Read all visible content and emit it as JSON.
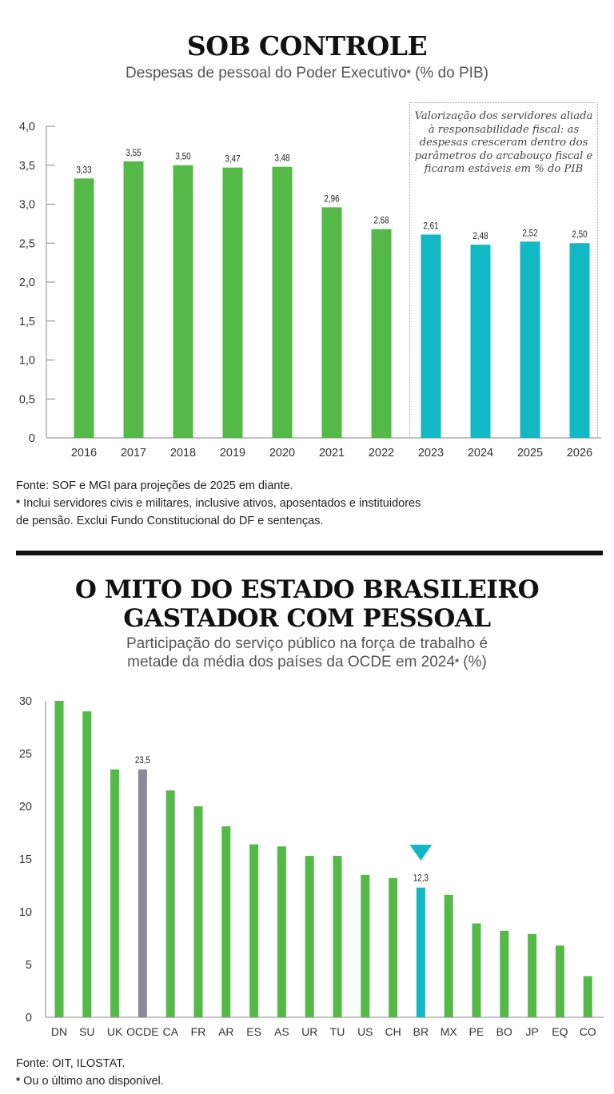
{
  "chart1": {
    "title": "SOB CONTROLE",
    "subtitle": "Despesas de pessoal do Poder Executivo",
    "subtitle_mark": "*",
    "subtitle_unit": " (% do PIB)",
    "callout": "Valorização dos servidores aliada à responsabilidade fiscal: as despesas cresceram dentro dos parâmetros do arcabouço fiscal e ficaram estáveis em % do PIB",
    "source": "Fonte: SOF e MGI para projeções de 2025 em diante.",
    "footnote_mark": "*",
    "footnote_line1": " Inclui servidores civis e militares, inclusive ativos, aposentados e instituidores",
    "footnote_line2": "de pensão. Exclui Fundo Constitucional do DF e sentenças."
  },
  "chart2": {
    "title_line1": "O MITO DO ESTADO BRASILEIRO",
    "title_line2": "GASTADOR COM PESSOAL",
    "subtitle_line1": "Participação do serviço público na força de trabalho é",
    "subtitle_line2": "metade da média dos países da OCDE em 2024",
    "subtitle_mark": "*",
    "subtitle_unit": " (%)",
    "source": "Fonte: OIT, ILOSTAT.",
    "footnote_mark": "*",
    "footnote": " Ou o último ano disponível."
  },
  "colors": {
    "green": "#54b947",
    "teal": "#12b8c4",
    "gray": "#8d8a98"
  },
  "chart_data": [
    {
      "type": "bar",
      "title": "SOB CONTROLE",
      "ylabel": "% do PIB",
      "ylim": [
        0,
        4.0
      ],
      "yticks": [
        "0",
        "0,5",
        "1,0",
        "1,5",
        "2,0",
        "2,5",
        "3,0",
        "3,5",
        "4,0"
      ],
      "categories": [
        "2016",
        "2017",
        "2018",
        "2019",
        "2020",
        "2021",
        "2022",
        "2023",
        "2024",
        "2025",
        "2026"
      ],
      "values": [
        3.33,
        3.55,
        3.5,
        3.47,
        3.48,
        2.96,
        2.68,
        2.61,
        2.48,
        2.52,
        2.5
      ],
      "labels": [
        "3,33",
        "3,55",
        "3,50",
        "3,47",
        "3,48",
        "2,96",
        "2,68",
        "2,61",
        "2,48",
        "2,52",
        "2,50"
      ],
      "highlight_from": "2023"
    },
    {
      "type": "bar",
      "title": "O MITO DO ESTADO BRASILEIRO GASTADOR COM PESSOAL",
      "ylabel": "%",
      "ylim": [
        0,
        30
      ],
      "yticks": [
        "0",
        "5",
        "10",
        "15",
        "20",
        "25",
        "30"
      ],
      "categories": [
        "DN",
        "SU",
        "UK",
        "OCDE",
        "CA",
        "FR",
        "AR",
        "ES",
        "AS",
        "UR",
        "TU",
        "US",
        "CH",
        "BR",
        "MX",
        "PE",
        "BO",
        "JP",
        "EQ",
        "CO"
      ],
      "values": [
        30.0,
        29.0,
        23.5,
        23.5,
        21.5,
        20.0,
        18.1,
        16.4,
        16.2,
        15.3,
        15.3,
        13.5,
        13.2,
        12.3,
        11.6,
        8.9,
        8.2,
        7.9,
        6.8,
        3.9
      ],
      "labels": {
        "OCDE": "23,5",
        "BR": "12,3"
      }
    }
  ]
}
